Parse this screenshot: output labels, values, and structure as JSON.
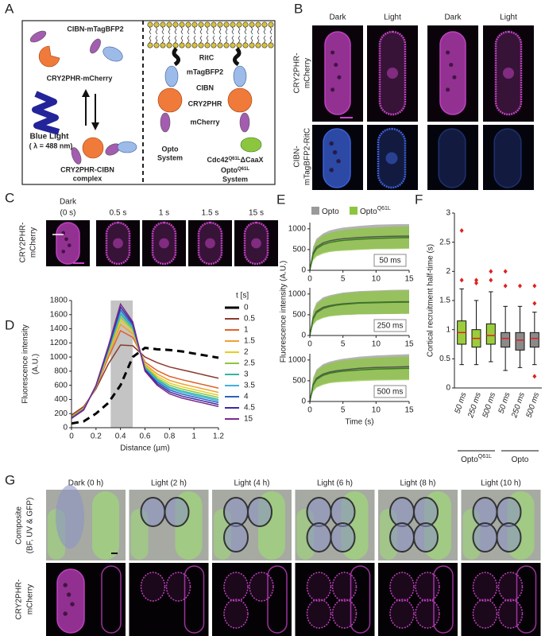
{
  "figure": {
    "panel_labels": [
      "A",
      "B",
      "C",
      "D",
      "E",
      "F",
      "G"
    ],
    "a": {
      "cibn": "CIBN-mTagBFP2",
      "cry": "CRY2PHR-mCherry",
      "light": "Blue Light",
      "wavelength": "( λ = 488 nm)",
      "complex": [
        "CRY2PHR-CIBN",
        "complex"
      ],
      "ritc": "RitC",
      "bfp": "mTagBFP2",
      "cibn2": "CIBN",
      "cry2": "CRY2PHR",
      "mcherry": "mCherry",
      "opto": [
        "Opto",
        "System"
      ],
      "cdc42": [
        "Cdc42",
        "Q61L",
        "ΔCaaX"
      ],
      "optoq": [
        "Opto",
        "Q61L",
        "System"
      ]
    },
    "b": {
      "columns": [
        "Dark",
        "Light",
        "Dark",
        "Light"
      ],
      "rows": [
        [
          "CRY2PHR-",
          "mCherry"
        ],
        [
          "CIBN-",
          "mTagBFP2-RitC"
        ]
      ]
    },
    "c": {
      "columns": [
        [
          "Dark",
          "(0 s)"
        ],
        [
          "0.5 s"
        ],
        [
          "1 s"
        ],
        [
          "1.5 s"
        ],
        [
          "15 s"
        ]
      ],
      "rows": [
        [
          "CRY2PHR-",
          "mCherry"
        ]
      ]
    },
    "g": {
      "columns": [
        "Dark (0 h)",
        "Light (2 h)",
        "Light (4 h)",
        "Light (6 h)",
        "Light (8 h)",
        "Light (10 h)"
      ],
      "rows": [
        [
          "Composite",
          "(BF, UV & GFP)"
        ],
        [
          "CRY2PHR-",
          "mCherry"
        ]
      ]
    }
  },
  "chart_data": [
    {
      "type": "line",
      "ylabel": [
        "Fluorescence intensity",
        "(A.U.)"
      ],
      "xlabel": "Distance (µm)",
      "x": [
        0,
        0.1,
        0.2,
        0.3,
        0.4,
        0.5,
        0.6,
        0.7,
        0.8,
        0.9,
        1.0,
        1.1,
        1.2
      ],
      "xlim": [
        0,
        1.2
      ],
      "ylim": [
        0,
        1800
      ],
      "xticks": [
        0,
        0.2,
        0.4,
        0.6,
        0.8,
        1,
        1.2
      ],
      "yticks": [
        0,
        200,
        400,
        600,
        800,
        1000,
        1200,
        1400,
        1600,
        1800
      ],
      "highlight": [
        0.32,
        0.5
      ],
      "legend": "right",
      "legend_title": "t [s]",
      "series": [
        {
          "name": "0",
          "color": "#000000",
          "dashed": true,
          "values": [
            60,
            90,
            200,
            350,
            600,
            1000,
            1130,
            1110,
            1100,
            1080,
            1050,
            1020,
            990
          ]
        },
        {
          "name": "0.5",
          "color": "#8b3a2b",
          "values": [
            180,
            300,
            550,
            900,
            1170,
            1160,
            1000,
            920,
            860,
            820,
            780,
            740,
            700
          ]
        },
        {
          "name": "1",
          "color": "#e0622a",
          "values": [
            163,
            283,
            568,
            988,
            1373,
            1279,
            930,
            808,
            727,
            680,
            640,
            600,
            560
          ]
        },
        {
          "name": "1.5",
          "color": "#f0a030",
          "values": [
            155,
            275,
            575,
            1025,
            1460,
            1330,
            900,
            760,
            670,
            620,
            580,
            540,
            500
          ]
        },
        {
          "name": "2",
          "color": "#e6cf1e",
          "values": [
            150,
            270,
            580,
            1050,
            1518,
            1364,
            880,
            728,
            632,
            580,
            540,
            500,
            460
          ]
        },
        {
          "name": "2.5",
          "color": "#8cc63f",
          "values": [
            146,
            266,
            584,
            1070,
            1564,
            1391,
            864,
            702,
            602,
            548,
            508,
            468,
            428
          ]
        },
        {
          "name": "3",
          "color": "#2eb8a0",
          "values": [
            143,
            263,
            588,
            1088,
            1605,
            1415,
            850,
            680,
            575,
            520,
            480,
            440,
            400
          ]
        },
        {
          "name": "3.5",
          "color": "#40b0e0",
          "values": [
            140,
            260,
            590,
            1100,
            1634,
            1432,
            840,
            664,
            556,
            500,
            460,
            420,
            380
          ]
        },
        {
          "name": "4",
          "color": "#3060c0",
          "values": [
            137,
            257,
            593,
            1115,
            1669,
            1452,
            828,
            645,
            533,
            476,
            436,
            396,
            356
          ]
        },
        {
          "name": "4.5",
          "color": "#3a2aa0",
          "values": [
            134,
            254,
            596,
            1133,
            1709,
            1476,
            814,
            622,
            507,
            448,
            408,
            368,
            328
          ]
        },
        {
          "name": "15",
          "color": "#7a2a8a",
          "values": [
            130,
            250,
            600,
            1150,
            1750,
            1500,
            800,
            600,
            480,
            420,
            380,
            340,
            300
          ]
        }
      ]
    },
    {
      "type": "line",
      "annotation": "50 ms",
      "legend": "top",
      "x": [
        0,
        0.5,
        1,
        2,
        3,
        4,
        5,
        7.5,
        10,
        12.5,
        15
      ],
      "xlim": [
        0,
        15
      ],
      "ylim": [
        0,
        1150
      ],
      "xticks": [
        0,
        5,
        10,
        15
      ],
      "yticks": [
        0,
        500,
        1000
      ],
      "series": [
        {
          "name": "Opto",
          "color": "#9a9a9a",
          "line_color": "#555555",
          "values": [
            0,
            420,
            560,
            660,
            710,
            740,
            760,
            790,
            810,
            820,
            825
          ],
          "spread": [
            0,
            150,
            200,
            230,
            250,
            260,
            270,
            280,
            290,
            290,
            290
          ]
        },
        {
          "name": "Opto",
          "name_sup": "Q61L",
          "color": "#8cc63f",
          "line_color": "#3a7a20",
          "values": [
            0,
            380,
            520,
            620,
            670,
            700,
            720,
            750,
            770,
            780,
            790
          ],
          "spread": [
            0,
            140,
            190,
            220,
            230,
            240,
            250,
            260,
            260,
            270,
            270
          ]
        }
      ]
    },
    {
      "type": "line",
      "annotation": "250 ms",
      "ylabel": [
        "Fluorescence intensity (A.U.)"
      ],
      "x": [
        0,
        0.5,
        1,
        2,
        3,
        4,
        5,
        7.5,
        10,
        12.5,
        15
      ],
      "xlim": [
        0,
        15
      ],
      "ylim": [
        0,
        1150
      ],
      "xticks": [
        0,
        5,
        10,
        15
      ],
      "yticks": [
        0,
        500,
        1000
      ],
      "series": [
        {
          "color": "#9a9a9a",
          "line_color": "#555555",
          "values": [
            0,
            430,
            580,
            680,
            720,
            745,
            765,
            790,
            800,
            810,
            815
          ],
          "spread": [
            0,
            160,
            210,
            240,
            250,
            260,
            270,
            280,
            285,
            290,
            290
          ]
        },
        {
          "color": "#8cc63f",
          "line_color": "#3a7a20",
          "values": [
            0,
            400,
            550,
            650,
            700,
            730,
            750,
            780,
            790,
            800,
            805
          ],
          "spread": [
            0,
            150,
            200,
            230,
            240,
            250,
            260,
            270,
            275,
            280,
            280
          ]
        }
      ]
    },
    {
      "type": "line",
      "annotation": "500 ms",
      "xlabel": "Time (s)",
      "x": [
        0,
        0.5,
        1,
        2,
        3,
        4,
        5,
        7.5,
        10,
        12.5,
        15
      ],
      "xlim": [
        0,
        15
      ],
      "ylim": [
        0,
        1150
      ],
      "xticks": [
        0,
        5,
        10,
        15
      ],
      "yticks": [
        0,
        500,
        1000
      ],
      "series": [
        {
          "color": "#9a9a9a",
          "line_color": "#555555",
          "values": [
            0,
            410,
            560,
            660,
            710,
            740,
            760,
            800,
            820,
            830,
            840
          ],
          "spread": [
            0,
            160,
            210,
            240,
            250,
            260,
            270,
            280,
            290,
            295,
            300
          ]
        },
        {
          "color": "#8cc63f",
          "line_color": "#3a7a20",
          "values": [
            0,
            390,
            530,
            630,
            680,
            710,
            730,
            760,
            780,
            790,
            800
          ],
          "spread": [
            0,
            150,
            200,
            230,
            240,
            250,
            260,
            270,
            275,
            280,
            285
          ]
        }
      ]
    },
    {
      "type": "box",
      "ylabel": "Cortical recruitment half-time (s)",
      "ylim": [
        0,
        3
      ],
      "yticks": [
        0,
        0.5,
        1,
        1.5,
        2,
        2.5,
        3
      ],
      "categories": [
        "50 ms",
        "250 ms",
        "500 ms",
        "50 ms",
        "250 ms",
        "500 ms"
      ],
      "colors": [
        "#9ccc3c",
        "#9ccc3c",
        "#9ccc3c",
        "#8a8a8a",
        "#8a8a8a",
        "#8a8a8a"
      ],
      "median_color": "#e02020",
      "boxes": [
        {
          "low": 0.4,
          "q1": 0.75,
          "median": 0.95,
          "q3": 1.15,
          "high": 1.7,
          "outliers": [
            2.7,
            1.85
          ]
        },
        {
          "low": 0.4,
          "q1": 0.7,
          "median": 0.85,
          "q3": 1.0,
          "high": 1.5,
          "outliers": [
            1.85,
            1.8
          ]
        },
        {
          "low": 0.45,
          "q1": 0.75,
          "median": 0.9,
          "q3": 1.1,
          "high": 1.65,
          "outliers": [
            2.0,
            1.85
          ]
        },
        {
          "low": 0.3,
          "q1": 0.7,
          "median": 0.85,
          "q3": 0.95,
          "high": 1.4,
          "outliers": [
            2.0,
            1.75
          ]
        },
        {
          "low": 0.35,
          "q1": 0.65,
          "median": 0.82,
          "q3": 0.95,
          "high": 1.4,
          "outliers": [
            1.75
          ]
        },
        {
          "low": 0.4,
          "q1": 0.7,
          "median": 0.85,
          "q3": 0.95,
          "high": 1.3,
          "outliers": [
            1.75,
            1.45,
            0.2
          ]
        }
      ],
      "groups": [
        {
          "label": "Opto",
          "sup": "Q61L"
        },
        {
          "label": "Opto"
        }
      ]
    }
  ]
}
